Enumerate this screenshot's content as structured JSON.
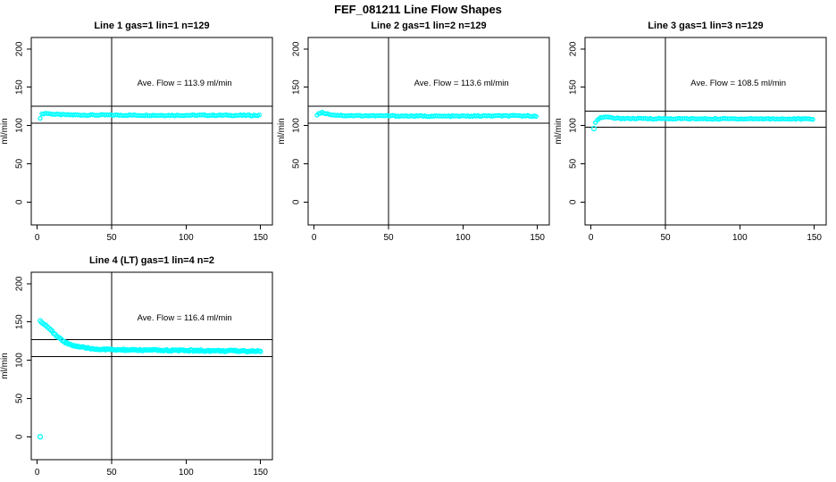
{
  "page": {
    "title": "FEF_081211  Line Flow Shapes"
  },
  "colors": {
    "point": "#00FFFF",
    "axis": "#000000",
    "background": "#FFFFFF"
  },
  "chart_data": {
    "type": "scatter",
    "title": "FEF_081211  Line Flow Shapes",
    "xlabel": "",
    "ylabel": "ml/min",
    "x_ticks": [
      0,
      50,
      100,
      150
    ],
    "y_ticks": [
      0,
      50,
      100,
      150,
      200
    ],
    "xlim": [
      -4,
      158
    ],
    "ylim": [
      -30,
      215
    ],
    "grid": false,
    "vline_x": 50,
    "annotation_anchor": {
      "x": 99,
      "y": 152
    },
    "panels": [
      {
        "title": "Line 1 gas=1 lin=1 n=129",
        "n": 129,
        "ave_flow": 113.9,
        "ave_flow_label": "Ave. Flow =  113.9  ml/min",
        "hline_upper": 125,
        "hline_lower": 103,
        "step": 1.15,
        "jitter": 1.4,
        "point_radius": 2,
        "outliers": [],
        "profile": [
          [
            2,
            110
          ],
          [
            3,
            114.3
          ],
          [
            4,
            115.5
          ],
          [
            6,
            116
          ],
          [
            9,
            115.2
          ],
          [
            13,
            114.4
          ],
          [
            20,
            113.9
          ],
          [
            30,
            113.7
          ],
          [
            50,
            113.6
          ],
          [
            70,
            113.4
          ],
          [
            90,
            113.3
          ],
          [
            110,
            113.4
          ],
          [
            130,
            113.3
          ],
          [
            150,
            113.2
          ]
        ]
      },
      {
        "title": "Line 2 gas=1 lin=2 n=129",
        "n": 129,
        "ave_flow": 113.6,
        "ave_flow_label": "Ave. Flow =  113.6  ml/min",
        "hline_upper": 125,
        "hline_lower": 103,
        "step": 1.15,
        "jitter": 1.4,
        "point_radius": 2,
        "outliers": [],
        "profile": [
          [
            2,
            113.5
          ],
          [
            3,
            115.8
          ],
          [
            5,
            117
          ],
          [
            7,
            116.2
          ],
          [
            10,
            114.8
          ],
          [
            14,
            113.6
          ],
          [
            20,
            113
          ],
          [
            30,
            112.8
          ],
          [
            50,
            112.6
          ],
          [
            70,
            112.3
          ],
          [
            90,
            112.1
          ],
          [
            110,
            112.4
          ],
          [
            130,
            112.6
          ],
          [
            150,
            112.5
          ]
        ]
      },
      {
        "title": "Line 3 gas=1 lin=3 n=129",
        "n": 129,
        "ave_flow": 108.5,
        "ave_flow_label": "Ave. Flow =  108.5  ml/min",
        "hline_upper": 119,
        "hline_lower": 98,
        "step": 1.15,
        "jitter": 1.5,
        "point_radius": 2,
        "outliers": [
          [
            2,
            96
          ]
        ],
        "profile": [
          [
            3,
            104.5
          ],
          [
            4,
            107.5
          ],
          [
            6,
            110
          ],
          [
            9,
            111
          ],
          [
            13,
            110.2
          ],
          [
            18,
            109.4
          ],
          [
            25,
            109
          ],
          [
            40,
            108.9
          ],
          [
            60,
            108.8
          ],
          [
            80,
            108.6
          ],
          [
            100,
            108.8
          ],
          [
            120,
            108.7
          ],
          [
            150,
            108.4
          ]
        ]
      },
      {
        "title": "Line 4 (LT) gas=1 lin=4 n=2",
        "n": 2,
        "ave_flow": 116.4,
        "ave_flow_label": "Ave. Flow =  116.4  ml/min",
        "hline_upper": 127,
        "hline_lower": 105,
        "step": 1.0,
        "jitter": 1.8,
        "point_radius": 2.3,
        "outliers": [
          [
            2,
            0
          ]
        ],
        "profile": [
          [
            2,
            151
          ],
          [
            3,
            150
          ],
          [
            4,
            148.5
          ],
          [
            5,
            147
          ],
          [
            6,
            145.5
          ],
          [
            8,
            141.5
          ],
          [
            10,
            137.5
          ],
          [
            12,
            133.5
          ],
          [
            14,
            130
          ],
          [
            16,
            127
          ],
          [
            18,
            124.5
          ],
          [
            20,
            122.5
          ],
          [
            23,
            120
          ],
          [
            26,
            118.3
          ],
          [
            30,
            116.7
          ],
          [
            35,
            115.4
          ],
          [
            40,
            114.6
          ],
          [
            50,
            113.8
          ],
          [
            60,
            113.4
          ],
          [
            80,
            113
          ],
          [
            100,
            112.7
          ],
          [
            120,
            112.3
          ],
          [
            150,
            111.9
          ]
        ]
      }
    ]
  }
}
